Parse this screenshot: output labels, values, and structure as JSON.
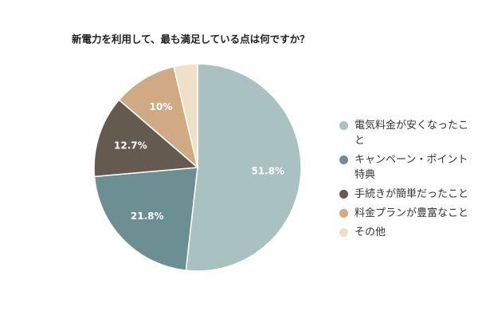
{
  "chart_data": {
    "type": "pie",
    "title": "新電力を利用して、最も満足している点は何ですか？",
    "categories": [
      "電気料金が安くなったこと",
      "キャンペーン・ポイント特典",
      "手続きが簡単だったこと",
      "料金プランが豊富なこと",
      "その他"
    ],
    "values": [
      51.8,
      21.8,
      12.7,
      10,
      3.7
    ],
    "value_labels": [
      "51.8%",
      "21.8%",
      "12.7%",
      "10%",
      null
    ],
    "colors": [
      "#a9c1c1",
      "#6c8f94",
      "#655a4f",
      "#cfaa85",
      "#efe1c9"
    ],
    "legend": "right"
  }
}
